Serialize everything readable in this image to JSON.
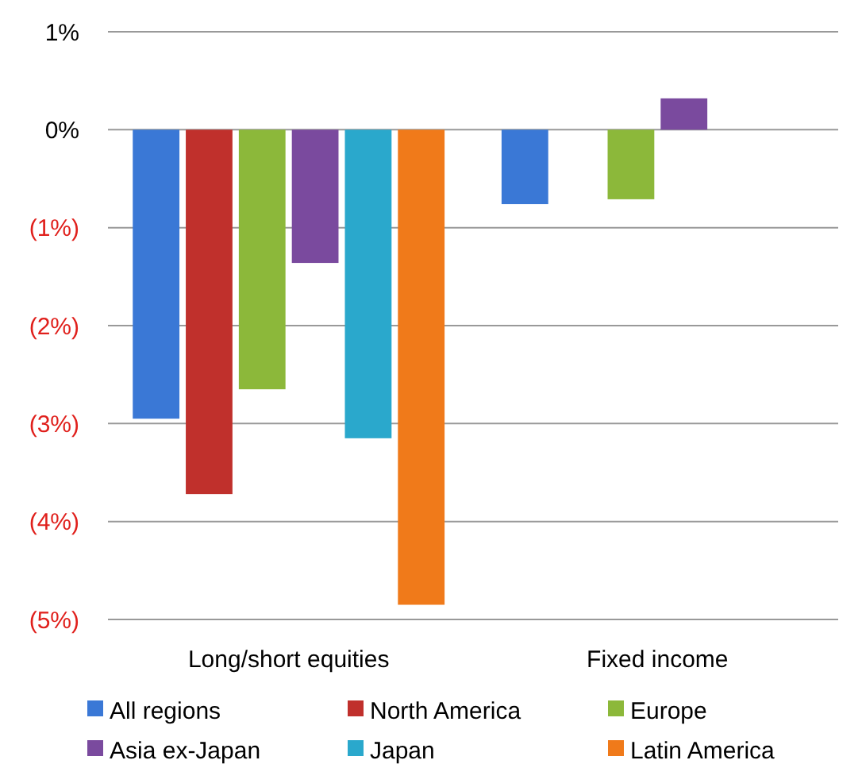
{
  "chart_data": {
    "type": "bar",
    "categories": [
      "Long/short equities",
      "Fixed income"
    ],
    "series": [
      {
        "name": "All regions",
        "color": "#3a78d6",
        "values": [
          -2.95,
          -0.76
        ]
      },
      {
        "name": "North America",
        "color": "#c0302c",
        "values": [
          -3.72,
          0
        ]
      },
      {
        "name": "Europe",
        "color": "#8cb83a",
        "values": [
          -2.65,
          -0.71
        ]
      },
      {
        "name": "Asia ex-Japan",
        "color": "#7a4a9e",
        "values": [
          -1.36,
          0.32
        ]
      },
      {
        "name": "Japan",
        "color": "#2aa8cc",
        "values": [
          -3.15,
          0
        ]
      },
      {
        "name": "Latin America",
        "color": "#f07a1a",
        "values": [
          -4.85,
          0
        ]
      }
    ],
    "ylim": [
      -5,
      1
    ],
    "yticks": [
      {
        "value": 1,
        "label": "1%"
      },
      {
        "value": 0,
        "label": "0%"
      },
      {
        "value": -1,
        "label": "(1%)"
      },
      {
        "value": -2,
        "label": "(2%)"
      },
      {
        "value": -3,
        "label": "(3%)"
      },
      {
        "value": -4,
        "label": "(4%)"
      },
      {
        "value": -5,
        "label": "(5%)"
      }
    ],
    "grid": "y",
    "legend": "bottom"
  }
}
